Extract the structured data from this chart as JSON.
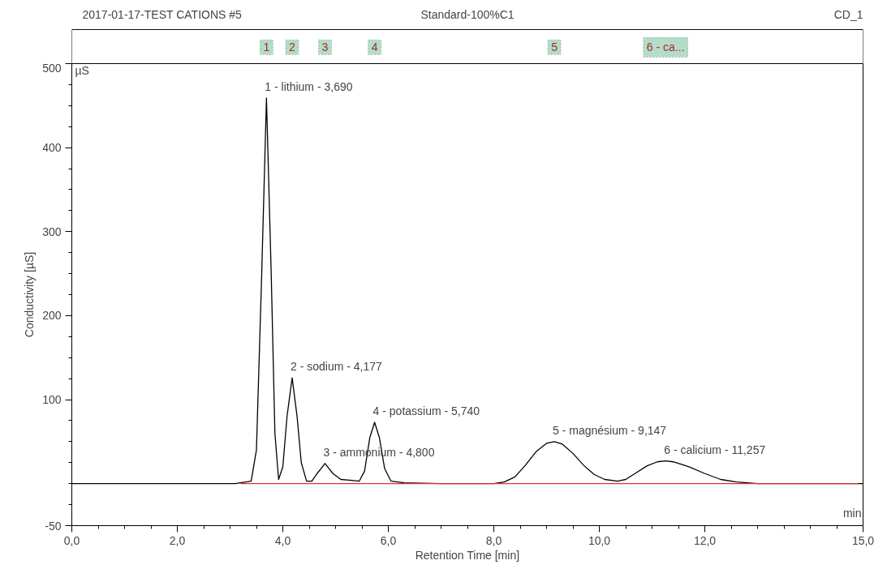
{
  "chart_data": {
    "type": "line",
    "title": "2017-01-17-TEST CATIONS #5",
    "subtitle": "Standard-100%C1",
    "xlabel": "Retention Time [min]",
    "ylabel": "Conductivity [µS]",
    "series": [
      {
        "color": "#000000",
        "x": [
          0,
          3.1,
          3.4,
          3.5,
          3.6,
          3.69,
          3.78,
          3.85,
          3.92,
          4.0,
          4.08,
          4.177,
          4.27,
          4.35,
          4.45,
          4.55,
          4.65,
          4.8,
          4.95,
          5.1,
          5.3,
          5.45,
          5.55,
          5.65,
          5.74,
          5.83,
          5.93,
          6.05,
          6.3,
          7.0,
          8.0,
          8.2,
          8.4,
          8.6,
          8.8,
          9.0,
          9.147,
          9.3,
          9.5,
          9.7,
          9.9,
          10.1,
          10.35,
          10.5,
          10.7,
          10.9,
          11.1,
          11.257,
          11.4,
          11.7,
          12.0,
          12.3,
          12.6,
          13.0,
          15.0
        ],
        "values": [
          0,
          0,
          3,
          40,
          250,
          459,
          250,
          60,
          5,
          20,
          80,
          126,
          80,
          25,
          3,
          3,
          12,
          24,
          12,
          5,
          4,
          3,
          15,
          55,
          73,
          55,
          18,
          3,
          1,
          0,
          0,
          2,
          8,
          22,
          38,
          48,
          50,
          47,
          36,
          22,
          11,
          5,
          3,
          5,
          13,
          21,
          26,
          27,
          26,
          20,
          12,
          5,
          2,
          0,
          0
        ]
      },
      {
        "color": "#e03030",
        "x": [
          3.2,
          3.92,
          4.48,
          5.45,
          7.7,
          10.35,
          14.9
        ],
        "values": [
          0,
          0,
          0,
          0,
          0,
          0,
          0
        ]
      }
    ],
    "annotations": [
      "CD_1",
      "µS",
      "min",
      {
        "text": "1 - lithium - 3,690",
        "x": 3.69,
        "y": 459
      },
      {
        "text": "2 - sodium - 4,177",
        "x": 4.177,
        "y": 126
      },
      {
        "text": "3 - ammonium - 4,800",
        "x": 4.8,
        "y": 24
      },
      {
        "text": "4 - potassium - 5,740",
        "x": 5.74,
        "y": 73
      },
      {
        "text": "5 - magnésium - 9,147",
        "x": 9.147,
        "y": 50
      },
      {
        "text": "6 - calicium - 11,257",
        "x": 11.257,
        "y": 27
      },
      "1",
      "2",
      "3",
      "4",
      "5",
      "6 - ca..."
    ],
    "xlim": [
      0,
      15
    ],
    "ylim": [
      -50,
      500
    ],
    "xticks": [
      {
        "value": 0,
        "label": "0,0"
      },
      {
        "value": 0.5,
        "label": null
      },
      {
        "value": 1,
        "label": null
      },
      {
        "value": 1.5,
        "label": null
      },
      {
        "value": 2,
        "label": "2,0"
      },
      {
        "value": 2.5,
        "label": null
      },
      {
        "value": 3,
        "label": null
      },
      {
        "value": 3.5,
        "label": null
      },
      {
        "value": 4,
        "label": "4,0"
      },
      {
        "value": 4.5,
        "label": null
      },
      {
        "value": 5,
        "label": null
      },
      {
        "value": 5.5,
        "label": null
      },
      {
        "value": 6,
        "label": "6,0"
      },
      {
        "value": 6.5,
        "label": null
      },
      {
        "value": 7,
        "label": null
      },
      {
        "value": 7.5,
        "label": null
      },
      {
        "value": 8,
        "label": "8,0"
      },
      {
        "value": 8.5,
        "label": null
      },
      {
        "value": 9,
        "label": null
      },
      {
        "value": 9.5,
        "label": null
      },
      {
        "value": 10,
        "label": "10,0"
      },
      {
        "value": 10.5,
        "label": null
      },
      {
        "value": 11,
        "label": null
      },
      {
        "value": 11.5,
        "label": null
      },
      {
        "value": 12,
        "label": "12,0"
      },
      {
        "value": 12.5,
        "label": null
      },
      {
        "value": 13,
        "label": null
      },
      {
        "value": 13.5,
        "label": null
      },
      {
        "value": 14,
        "label": null
      },
      {
        "value": 14.5,
        "label": null
      },
      {
        "value": 15,
        "label": "15,0"
      }
    ],
    "yticks": [
      -50,
      {
        "value": -25,
        "label": null
      },
      {
        "value": 0,
        "label": null
      },
      {
        "value": 25,
        "label": null
      },
      {
        "value": 50,
        "label": null
      },
      {
        "value": 75,
        "label": null
      },
      100,
      {
        "value": 125,
        "label": null
      },
      {
        "value": 150,
        "label": null
      },
      {
        "value": 175,
        "label": null
      },
      200,
      {
        "value": 225,
        "label": null
      },
      {
        "value": 250,
        "label": null
      },
      {
        "value": 275,
        "label": null
      },
      300,
      {
        "value": 325,
        "label": null
      },
      {
        "value": 350,
        "label": null
      },
      {
        "value": 375,
        "label": null
      },
      400,
      {
        "value": 425,
        "label": null
      },
      {
        "value": 450,
        "label": null
      },
      {
        "value": 475,
        "label": null
      },
      500
    ],
    "grid": false,
    "marker": "none",
    "line_style": "solid"
  }
}
